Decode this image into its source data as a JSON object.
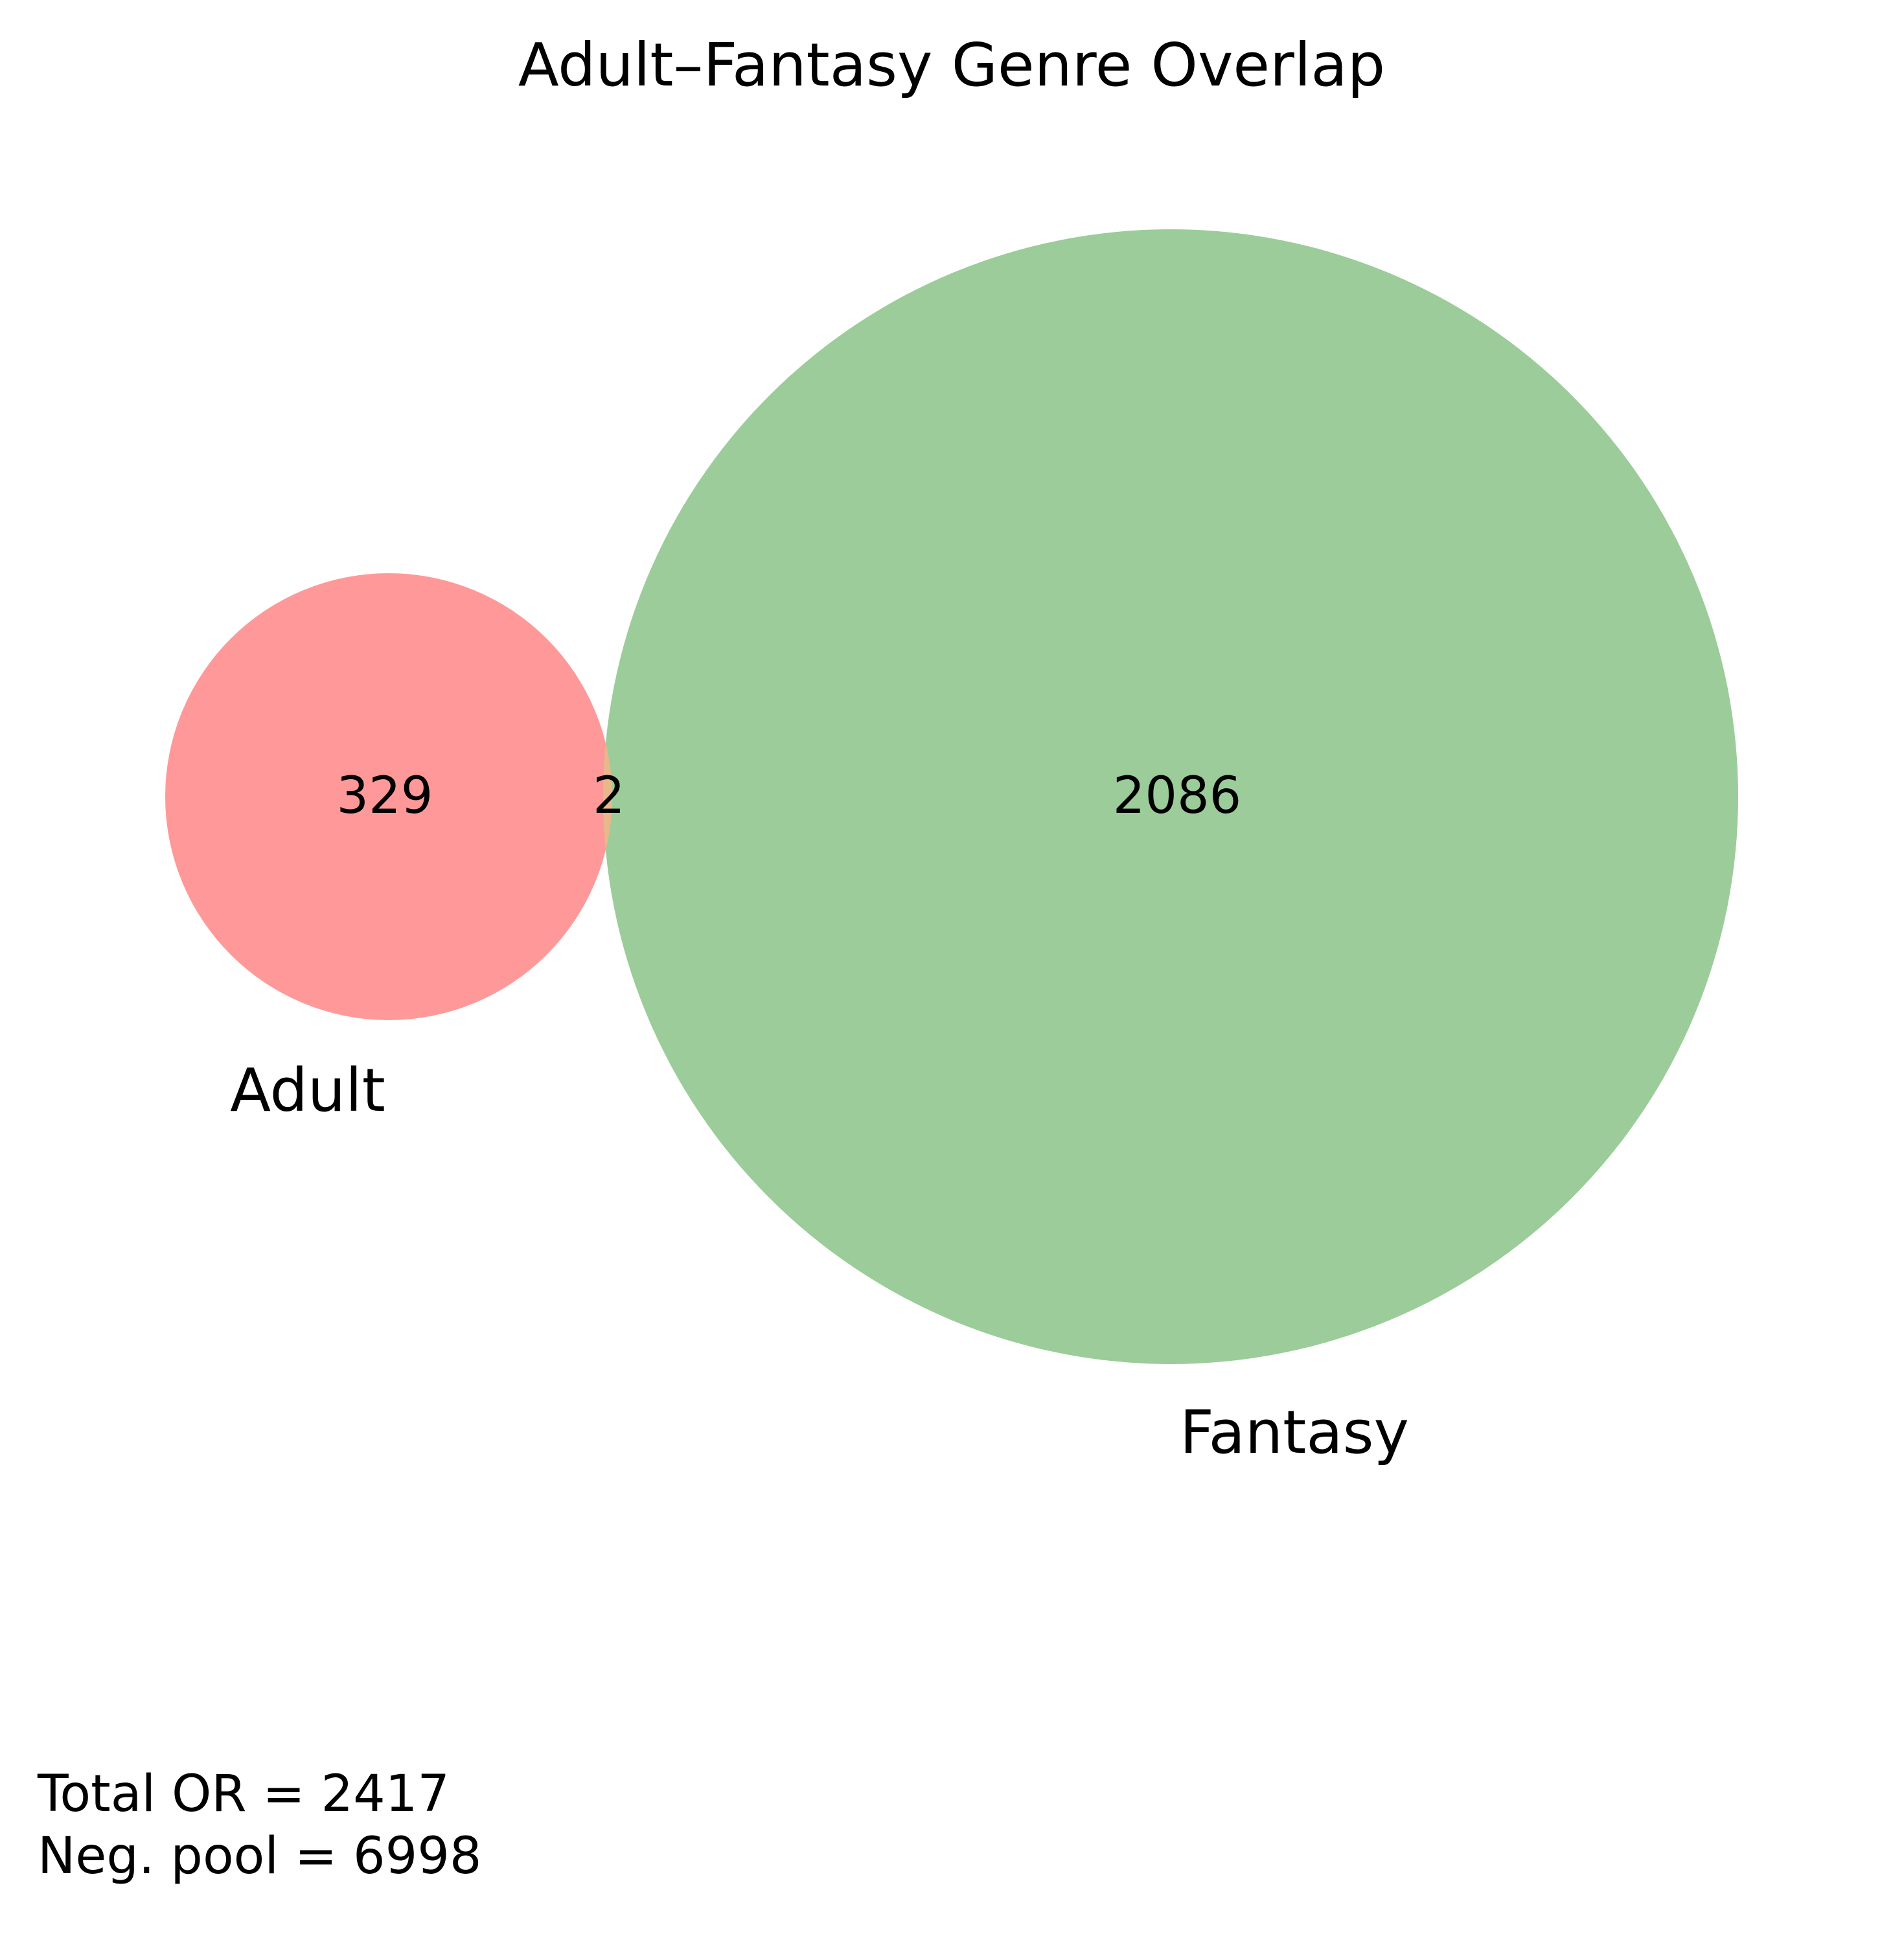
{
  "title": "Adult–Fantasy Genre Overlap",
  "sets": [
    {
      "name": "Adult",
      "only_count": 329,
      "color": "#ff9999"
    },
    {
      "name": "Fantasy",
      "only_count": 2086,
      "color": "#9bcc99"
    }
  ],
  "intersection": {
    "count": 2,
    "color": "#e8b88a"
  },
  "footer": {
    "total_line": "Total OR = 2417",
    "pool_line": "Neg. pool = 6998"
  }
}
